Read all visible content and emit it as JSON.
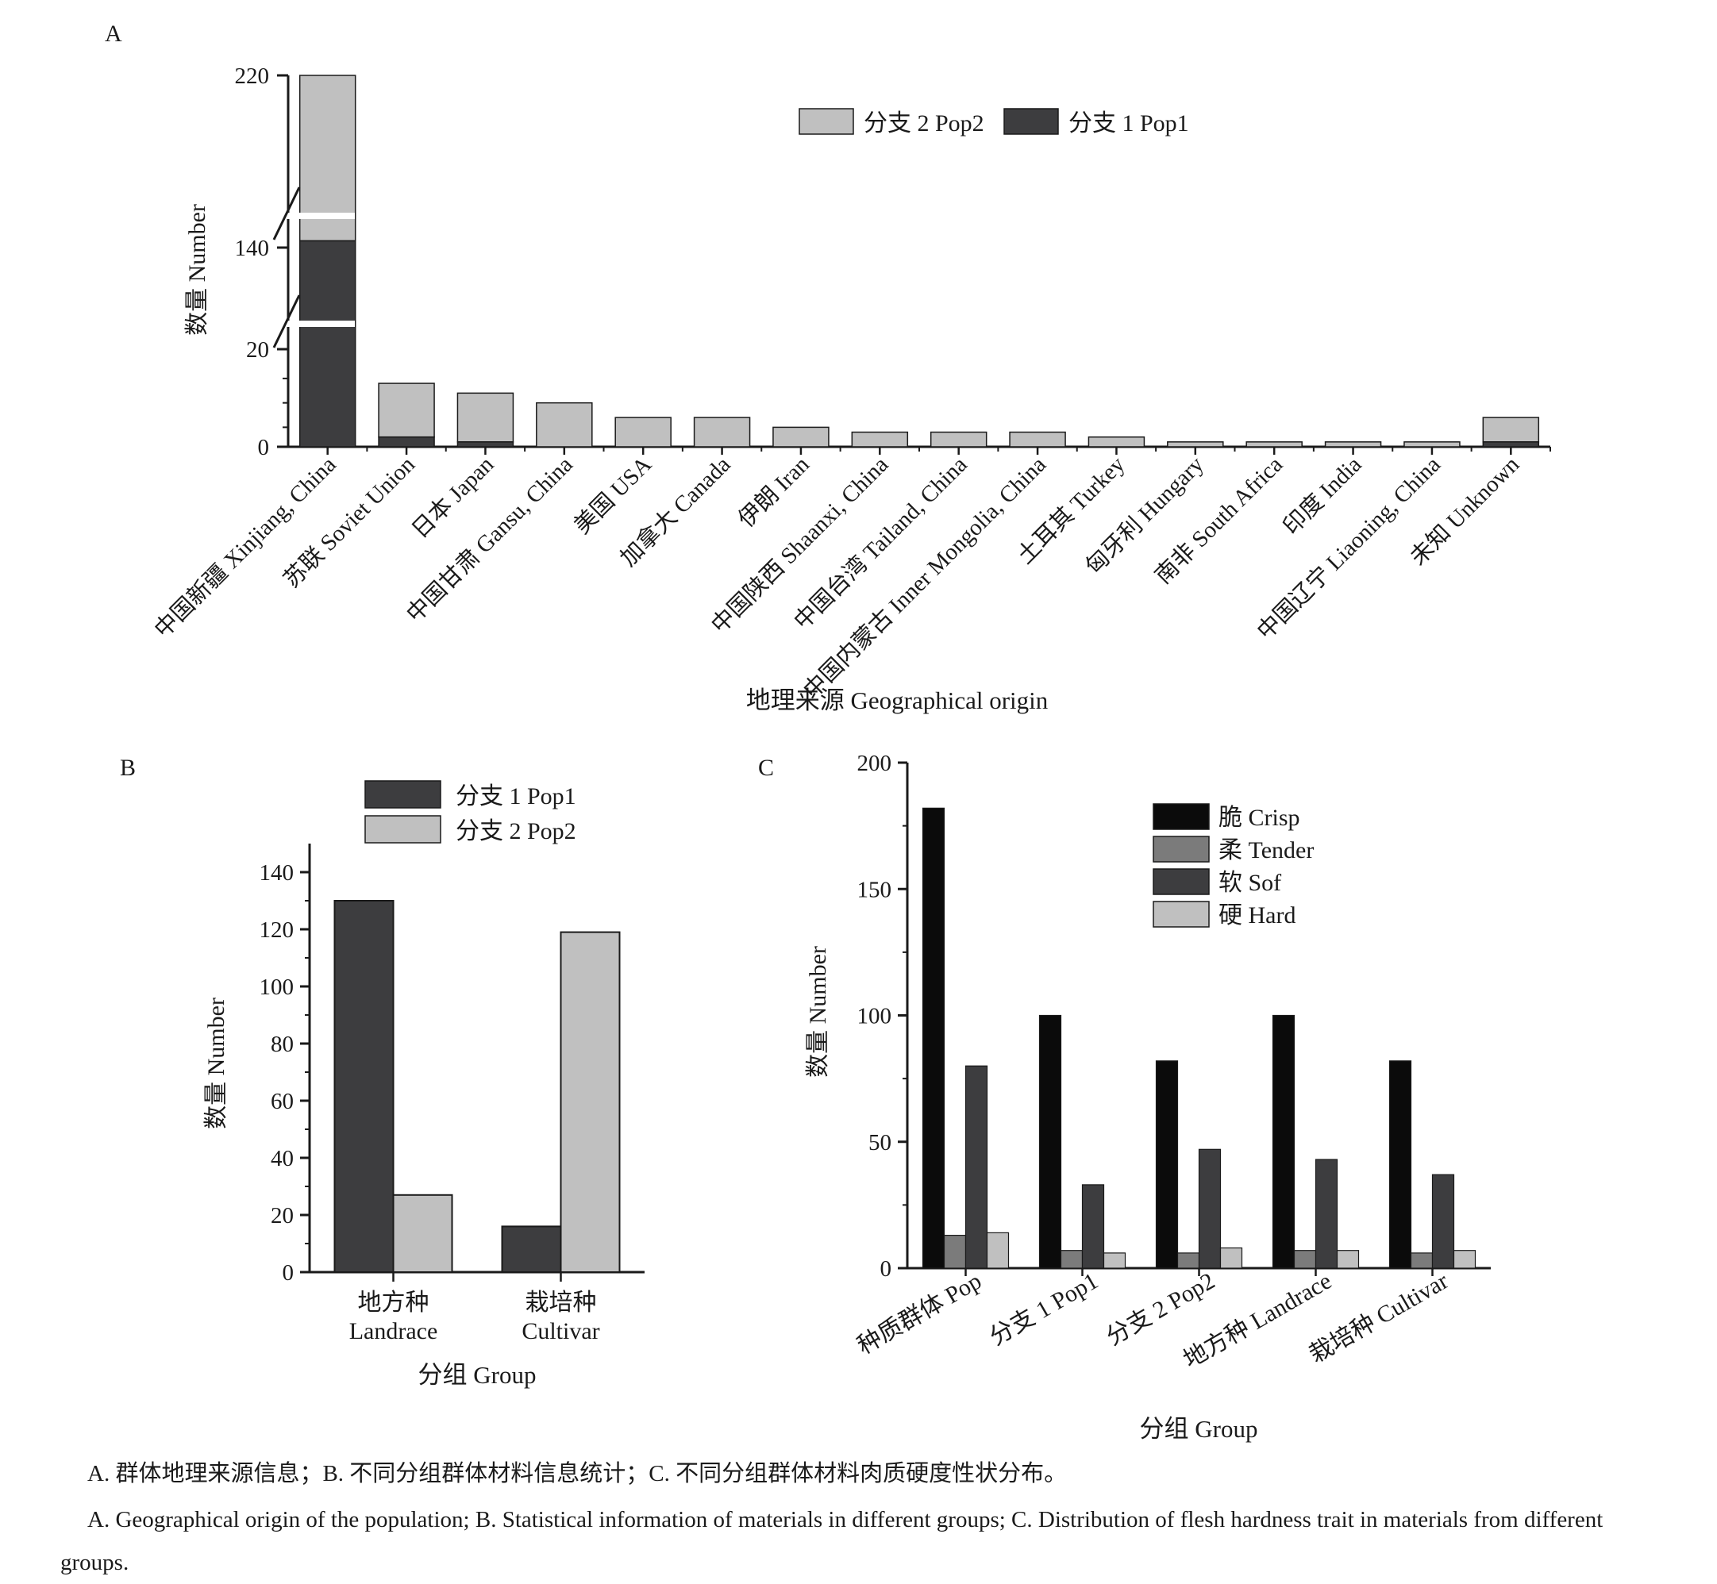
{
  "chart_data": [
    {
      "panel": "A",
      "type": "bar",
      "stacked": true,
      "xlabel": "地理来源 Geographical origin",
      "ylabel": "数量 Number",
      "y_ticks": [
        "0",
        "20",
        "140",
        "220"
      ],
      "y_axis_breaks": true,
      "categories": [
        "中国新疆 Xinjiang, China",
        "苏联 Soviet Union",
        "日本 Japan",
        "中国甘肃 Gansu, China",
        "美国 USA",
        "加拿大 Canada",
        "伊朗 Iran",
        "中国陕西 Shaanxi, China",
        "中国台湾 Tailand, China",
        "中国内蒙古 Inner Mongolia, China",
        "土耳其 Turkey",
        "匈牙利 Hungary",
        "南非 South Africa",
        "印度 India",
        "中国辽宁 Liaoning, China",
        "未知 Unknown"
      ],
      "series": [
        {
          "name": "分支 1 Pop1",
          "color": "#3d3d3f",
          "values": [
            148,
            2,
            1,
            0,
            0,
            0,
            0,
            0,
            0,
            0,
            0,
            0,
            0,
            0,
            0,
            1
          ]
        },
        {
          "name": "分支 2 Pop2",
          "color": "#c0c0c0",
          "values": [
            72,
            11,
            10,
            9,
            6,
            6,
            4,
            3,
            3,
            3,
            2,
            1,
            1,
            1,
            1,
            5
          ]
        }
      ],
      "legend": "top-right"
    },
    {
      "panel": "B",
      "type": "bar",
      "xlabel": "分组 Group",
      "ylabel": "数量 Number",
      "ylim": [
        0,
        150
      ],
      "y_ticks": [
        0,
        20,
        40,
        60,
        80,
        100,
        120,
        140
      ],
      "categories": [
        [
          "地方种",
          "Landrace"
        ],
        [
          "栽培种",
          "Cultivar"
        ]
      ],
      "series": [
        {
          "name": "分支 1 Pop1",
          "color": "#3d3d3f",
          "values": [
            130,
            16
          ]
        },
        {
          "name": "分支 2 Pop2",
          "color": "#c0c0c0",
          "values": [
            27,
            119
          ]
        }
      ],
      "legend": "top"
    },
    {
      "panel": "C",
      "type": "bar",
      "xlabel": "分组 Group",
      "ylabel": "数量 Number",
      "ylim": [
        0,
        200
      ],
      "y_ticks": [
        0,
        50,
        100,
        150,
        200
      ],
      "categories": [
        "种质群体 Pop",
        "分支 1 Pop1",
        "分支 2 Pop2",
        "地方种 Landrace",
        "栽培种 Cultivar"
      ],
      "series": [
        {
          "name": "脆 Crisp",
          "color": "#0b0b0b",
          "values": [
            182,
            100,
            82,
            100,
            82
          ]
        },
        {
          "name": "柔 Tender",
          "color": "#7b7b7b",
          "values": [
            13,
            7,
            6,
            7,
            6
          ]
        },
        {
          "name": "软 Sof",
          "color": "#3d3d3f",
          "values": [
            80,
            33,
            47,
            43,
            37
          ]
        },
        {
          "name": "硬 Hard",
          "color": "#c0c0c0",
          "values": [
            14,
            6,
            8,
            7,
            7
          ]
        }
      ],
      "legend": "top-right"
    }
  ],
  "captions": {
    "zh": "A. 群体地理来源信息；B. 不同分组群体材料信息统计；C. 不同分组群体材料肉质硬度性状分布。",
    "en": "A. Geographical origin of the population; B. Statistical information of materials in different groups; C. Distribution of flesh hardness trait in materials from different groups."
  }
}
